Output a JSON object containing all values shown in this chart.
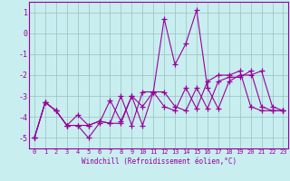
{
  "x": [
    0,
    1,
    2,
    3,
    4,
    5,
    6,
    7,
    8,
    9,
    10,
    11,
    12,
    13,
    14,
    15,
    16,
    17,
    18,
    19,
    20,
    21,
    22,
    23
  ],
  "line1": [
    -5.0,
    -3.3,
    -3.7,
    -4.4,
    -4.4,
    -5.0,
    -4.3,
    -3.2,
    -4.2,
    -3.0,
    -3.5,
    -2.8,
    0.7,
    -1.5,
    -0.5,
    1.1,
    -2.6,
    -3.6,
    -2.3,
    -2.0,
    -2.0,
    -1.8,
    -3.5,
    -3.7
  ],
  "line2": [
    -5.0,
    -3.3,
    -3.7,
    -4.4,
    -3.9,
    -4.4,
    -4.2,
    -4.3,
    -4.3,
    -3.0,
    -4.4,
    -2.8,
    -2.8,
    -3.5,
    -3.7,
    -2.6,
    -3.6,
    -2.3,
    -2.1,
    -2.1,
    -1.8,
    -3.5,
    -3.7,
    -3.7
  ],
  "line3": [
    -5.0,
    -3.3,
    -3.7,
    -4.4,
    -4.4,
    -4.4,
    -4.2,
    -4.3,
    -3.0,
    -4.4,
    -2.8,
    -2.8,
    -3.5,
    -3.7,
    -2.6,
    -3.6,
    -2.3,
    -2.0,
    -2.0,
    -1.8,
    -3.5,
    -3.7,
    -3.7,
    -3.7
  ],
  "ylim": [
    -5.5,
    1.5
  ],
  "xlim": [
    -0.5,
    23.5
  ],
  "yticks": [
    1,
    0,
    -1,
    -2,
    -3,
    -4,
    -5
  ],
  "xticks": [
    0,
    1,
    2,
    3,
    4,
    5,
    6,
    7,
    8,
    9,
    10,
    11,
    12,
    13,
    14,
    15,
    16,
    17,
    18,
    19,
    20,
    21,
    22,
    23
  ],
  "line_color": "#990099",
  "bg_color": "#c8eef0",
  "grid_color": "#9bbfc0",
  "xlabel": "Windchill (Refroidissement éolien,°C)",
  "marker": "+",
  "markersize": 4,
  "linewidth": 0.8,
  "tick_fontsize": 5,
  "xlabel_fontsize": 5.5
}
